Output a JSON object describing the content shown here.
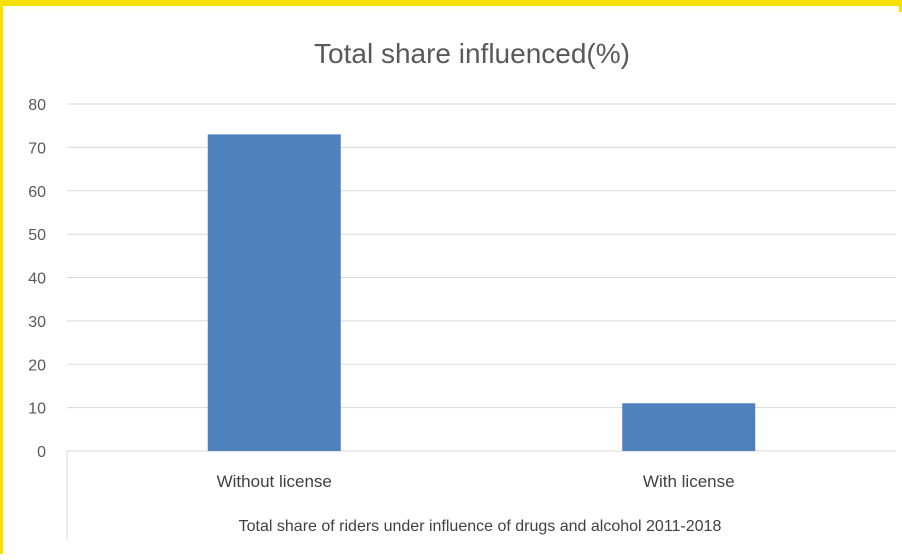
{
  "chart_data": {
    "type": "bar",
    "title": "Total share influenced(%)",
    "xlabel": "Total share of riders under influence of drugs and alcohol 2011-2018",
    "ylabel": "",
    "categories": [
      "Without license",
      "With license"
    ],
    "values": [
      73,
      11
    ],
    "ylim": [
      0,
      80
    ],
    "yticks": [
      0,
      10,
      20,
      30,
      40,
      50,
      60,
      70,
      80
    ],
    "grid": true,
    "legend": "none",
    "bar_color": "#4f81bd",
    "grid_color": "#d9d9d9"
  }
}
